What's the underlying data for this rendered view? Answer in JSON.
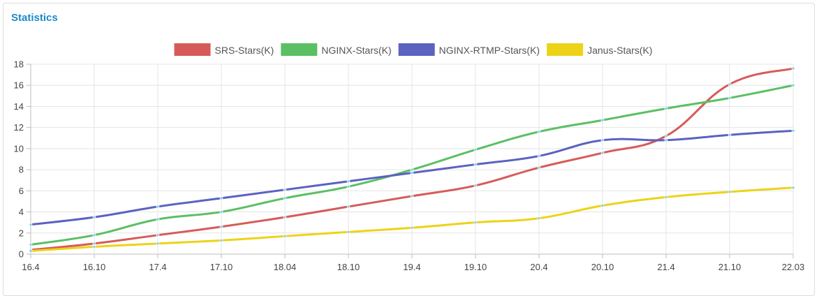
{
  "panel": {
    "title": "Statistics"
  },
  "chart_data": {
    "type": "line",
    "x": [
      "16.4",
      "16.10",
      "17.4",
      "17.10",
      "18.04",
      "18.10",
      "19.4",
      "19.10",
      "20.4",
      "20.10",
      "21.4",
      "21.10",
      "22.03"
    ],
    "ylim": [
      0,
      18
    ],
    "yticks": [
      0,
      2,
      4,
      6,
      8,
      10,
      12,
      14,
      16,
      18
    ],
    "grid": true,
    "legend_position": "top-center",
    "series": [
      {
        "name": "SRS-Stars(K)",
        "color": "#d65b58",
        "values": [
          0.4,
          1.0,
          1.8,
          2.6,
          3.5,
          4.5,
          5.5,
          6.5,
          8.2,
          9.6,
          11.2,
          16.1,
          17.6
        ]
      },
      {
        "name": "NGINX-Stars(K)",
        "color": "#5bbf63",
        "values": [
          0.9,
          1.8,
          3.3,
          4.0,
          5.3,
          6.4,
          8.0,
          9.9,
          11.6,
          12.7,
          13.8,
          14.8,
          16.0
        ]
      },
      {
        "name": "NGINX-RTMP-Stars(K)",
        "color": "#5b62c0",
        "values": [
          2.8,
          3.5,
          4.5,
          5.3,
          6.1,
          6.9,
          7.7,
          8.5,
          9.3,
          10.8,
          10.8,
          11.3,
          11.7
        ]
      },
      {
        "name": "Janus-Stars(K)",
        "color": "#ecd318",
        "values": [
          0.3,
          0.7,
          1.0,
          1.3,
          1.7,
          2.1,
          2.5,
          3.0,
          3.4,
          4.6,
          5.4,
          5.9,
          6.3
        ]
      }
    ]
  }
}
